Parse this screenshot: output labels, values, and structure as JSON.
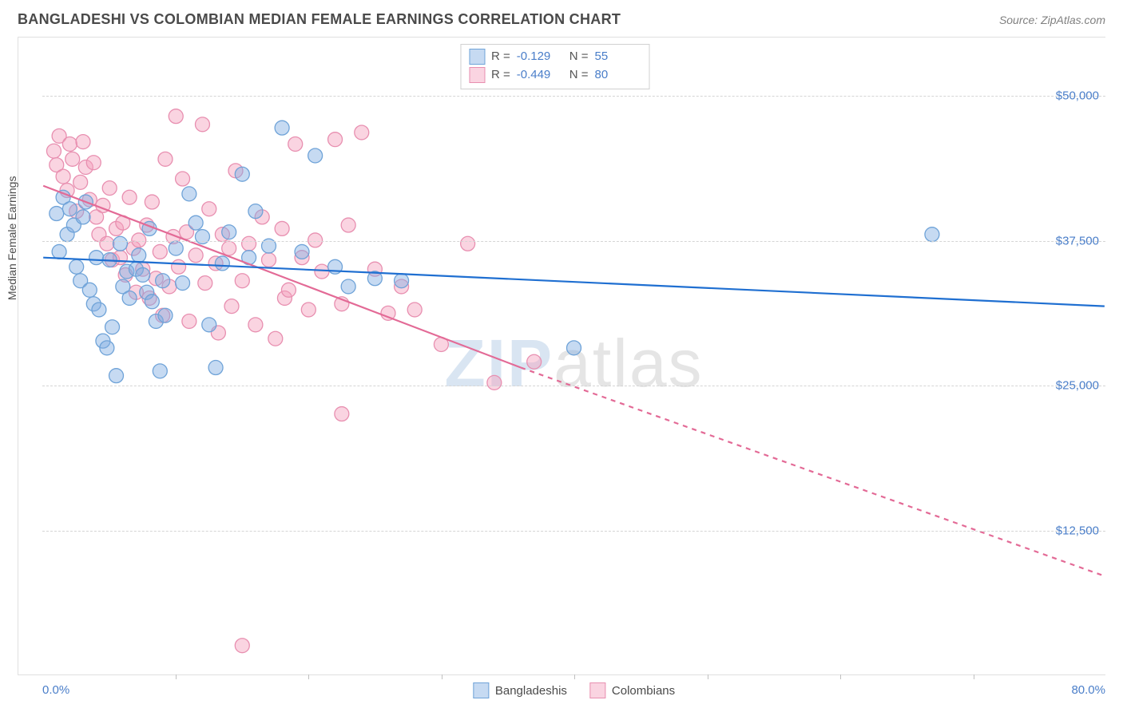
{
  "header": {
    "title": "BANGLADESHI VS COLOMBIAN MEDIAN FEMALE EARNINGS CORRELATION CHART",
    "source": "Source: ZipAtlas.com"
  },
  "watermark": {
    "part1": "ZIP",
    "part2": "atlas"
  },
  "chart": {
    "type": "scatter",
    "y_axis_label": "Median Female Earnings",
    "x_range": [
      0,
      80
    ],
    "y_range": [
      0,
      55000
    ],
    "x_bounds_labels": {
      "min": "0.0%",
      "max": "80.0%"
    },
    "y_ticks": [
      {
        "value": 12500,
        "label": "$12,500"
      },
      {
        "value": 25000,
        "label": "$25,000"
      },
      {
        "value": 37500,
        "label": "$37,500"
      },
      {
        "value": 50000,
        "label": "$50,000"
      }
    ],
    "x_tick_marks": [
      10,
      20,
      30,
      40,
      50,
      60,
      70
    ],
    "grid_color": "#d5d5d5",
    "plot_border_color": "#e0e0e0",
    "background_color": "#ffffff",
    "axis_label_color": "#4a7ec9",
    "axis_text_color": "#4a4a4a",
    "axis_label_fontsize": 14,
    "tick_fontsize": 15
  },
  "series": {
    "bangladeshi": {
      "label": "Bangladeshis",
      "color_fill": "rgba(128,173,226,0.45)",
      "color_stroke": "#6fa3d8",
      "trend_color": "#1f6fd1",
      "trend_width": 2.2,
      "marker_radius": 9,
      "R": "-0.129",
      "N": "55",
      "trend": {
        "x1": 0,
        "y1": 36000,
        "x2": 80,
        "y2": 31800,
        "dash_after_x": 80
      },
      "points": [
        [
          1.0,
          39800
        ],
        [
          1.5,
          41200
        ],
        [
          1.8,
          38000
        ],
        [
          1.2,
          36500
        ],
        [
          2.0,
          40200
        ],
        [
          2.3,
          38800
        ],
        [
          2.5,
          35200
        ],
        [
          2.8,
          34000
        ],
        [
          3.0,
          39500
        ],
        [
          3.2,
          40800
        ],
        [
          3.5,
          33200
        ],
        [
          3.8,
          32000
        ],
        [
          4.0,
          36000
        ],
        [
          4.2,
          31500
        ],
        [
          4.5,
          28800
        ],
        [
          4.8,
          28200
        ],
        [
          5.0,
          35800
        ],
        [
          5.2,
          30000
        ],
        [
          5.5,
          25800
        ],
        [
          5.8,
          37200
        ],
        [
          6.0,
          33500
        ],
        [
          6.3,
          34800
        ],
        [
          6.5,
          32500
        ],
        [
          7.0,
          35000
        ],
        [
          7.2,
          36200
        ],
        [
          7.5,
          34500
        ],
        [
          7.8,
          33000
        ],
        [
          8.0,
          38500
        ],
        [
          8.2,
          32200
        ],
        [
          8.5,
          30500
        ],
        [
          8.8,
          26200
        ],
        [
          9.0,
          34000
        ],
        [
          9.2,
          31000
        ],
        [
          10.0,
          36800
        ],
        [
          10.5,
          33800
        ],
        [
          11.0,
          41500
        ],
        [
          11.5,
          39000
        ],
        [
          12.0,
          37800
        ],
        [
          12.5,
          30200
        ],
        [
          13.0,
          26500
        ],
        [
          13.5,
          35500
        ],
        [
          14.0,
          38200
        ],
        [
          15.0,
          43200
        ],
        [
          15.5,
          36000
        ],
        [
          16.0,
          40000
        ],
        [
          17.0,
          37000
        ],
        [
          18.0,
          47200
        ],
        [
          19.5,
          36500
        ],
        [
          20.5,
          44800
        ],
        [
          22.0,
          35200
        ],
        [
          23.0,
          33500
        ],
        [
          25.0,
          34200
        ],
        [
          27.0,
          34000
        ],
        [
          40.0,
          28200
        ],
        [
          67.0,
          38000
        ]
      ]
    },
    "colombian": {
      "label": "Colombians",
      "color_fill": "rgba(244,160,188,0.45)",
      "color_stroke": "#e88fb0",
      "trend_color": "#e36a96",
      "trend_width": 2.2,
      "marker_radius": 9,
      "R": "-0.449",
      "N": "80",
      "trend": {
        "x1": 0,
        "y1": 42200,
        "x2": 36,
        "y2": 26500,
        "dash_after_x": 36,
        "x3": 80,
        "y3": 8500
      },
      "points": [
        [
          0.8,
          45200
        ],
        [
          1.0,
          44000
        ],
        [
          1.2,
          46500
        ],
        [
          1.5,
          43000
        ],
        [
          1.8,
          41800
        ],
        [
          2.0,
          45800
        ],
        [
          2.2,
          44500
        ],
        [
          2.5,
          40000
        ],
        [
          2.8,
          42500
        ],
        [
          3.0,
          46000
        ],
        [
          3.2,
          43800
        ],
        [
          3.5,
          41000
        ],
        [
          3.8,
          44200
        ],
        [
          4.0,
          39500
        ],
        [
          4.2,
          38000
        ],
        [
          4.5,
          40500
        ],
        [
          4.8,
          37200
        ],
        [
          5.0,
          42000
        ],
        [
          5.2,
          35800
        ],
        [
          5.5,
          38500
        ],
        [
          5.8,
          36000
        ],
        [
          6.0,
          39000
        ],
        [
          6.2,
          34500
        ],
        [
          6.5,
          41200
        ],
        [
          6.8,
          36800
        ],
        [
          7.0,
          33000
        ],
        [
          7.2,
          37500
        ],
        [
          7.5,
          35000
        ],
        [
          7.8,
          38800
        ],
        [
          8.0,
          32500
        ],
        [
          8.2,
          40800
        ],
        [
          8.5,
          34200
        ],
        [
          8.8,
          36500
        ],
        [
          9.0,
          31000
        ],
        [
          9.2,
          44500
        ],
        [
          9.5,
          33500
        ],
        [
          9.8,
          37800
        ],
        [
          10.0,
          48200
        ],
        [
          10.2,
          35200
        ],
        [
          10.5,
          42800
        ],
        [
          10.8,
          38200
        ],
        [
          11.0,
          30500
        ],
        [
          11.5,
          36200
        ],
        [
          12.0,
          47500
        ],
        [
          12.2,
          33800
        ],
        [
          12.5,
          40200
        ],
        [
          13.0,
          35500
        ],
        [
          13.2,
          29500
        ],
        [
          13.5,
          38000
        ],
        [
          14.0,
          36800
        ],
        [
          14.2,
          31800
        ],
        [
          14.5,
          43500
        ],
        [
          15.0,
          34000
        ],
        [
          15.5,
          37200
        ],
        [
          16.0,
          30200
        ],
        [
          16.5,
          39500
        ],
        [
          17.0,
          35800
        ],
        [
          17.5,
          29000
        ],
        [
          18.0,
          38500
        ],
        [
          18.2,
          32500
        ],
        [
          18.5,
          33200
        ],
        [
          19.0,
          45800
        ],
        [
          19.5,
          36000
        ],
        [
          20.0,
          31500
        ],
        [
          20.5,
          37500
        ],
        [
          21.0,
          34800
        ],
        [
          22.0,
          46200
        ],
        [
          22.5,
          32000
        ],
        [
          23.0,
          38800
        ],
        [
          24.0,
          46800
        ],
        [
          25.0,
          35000
        ],
        [
          26.0,
          31200
        ],
        [
          27.0,
          33500
        ],
        [
          15.0,
          2500
        ],
        [
          22.5,
          22500
        ],
        [
          28.0,
          31500
        ],
        [
          30.0,
          28500
        ],
        [
          32.0,
          37200
        ],
        [
          34.0,
          25200
        ],
        [
          37.0,
          27000
        ]
      ]
    }
  },
  "top_legend": {
    "rows": [
      {
        "series": "bangladeshi",
        "r_label": "R =",
        "n_label": "N ="
      },
      {
        "series": "colombian",
        "r_label": "R =",
        "n_label": "N ="
      }
    ]
  }
}
